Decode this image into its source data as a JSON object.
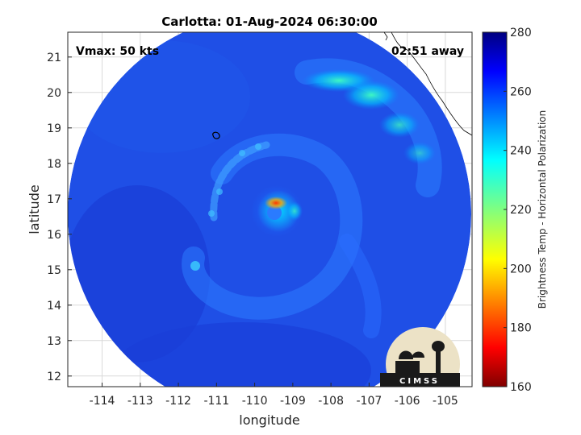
{
  "title": "Carlotta: 01-Aug-2024 06:30:00",
  "annotations": {
    "vmax": "Vmax: 50 kts",
    "away": "02:51 away"
  },
  "axes": {
    "xlabel": "longitude",
    "ylabel": "latitude",
    "xlim": [
      -114.9,
      -104.3
    ],
    "ylim": [
      11.7,
      21.7
    ],
    "xticks": [
      -114,
      -113,
      -112,
      -111,
      -110,
      -109,
      -108,
      -107,
      -106,
      -105
    ],
    "yticks": [
      12,
      13,
      14,
      15,
      16,
      17,
      18,
      19,
      20,
      21
    ],
    "grid": true
  },
  "colorbar": {
    "label": "Brightness Temp - Horizontal Polarization",
    "range": [
      160,
      280
    ],
    "ticks": [
      160,
      180,
      200,
      220,
      240,
      260,
      280
    ],
    "colormap": "jet"
  },
  "storm": {
    "center": [
      -109.7,
      16.8
    ],
    "scan_center": [
      -109.8,
      16.6
    ],
    "background_temp": 262
  },
  "logo": {
    "text": "CIMSS"
  },
  "colors": {
    "axis": "#262626",
    "grid": "#d9d9d9",
    "coast": "#000000"
  }
}
